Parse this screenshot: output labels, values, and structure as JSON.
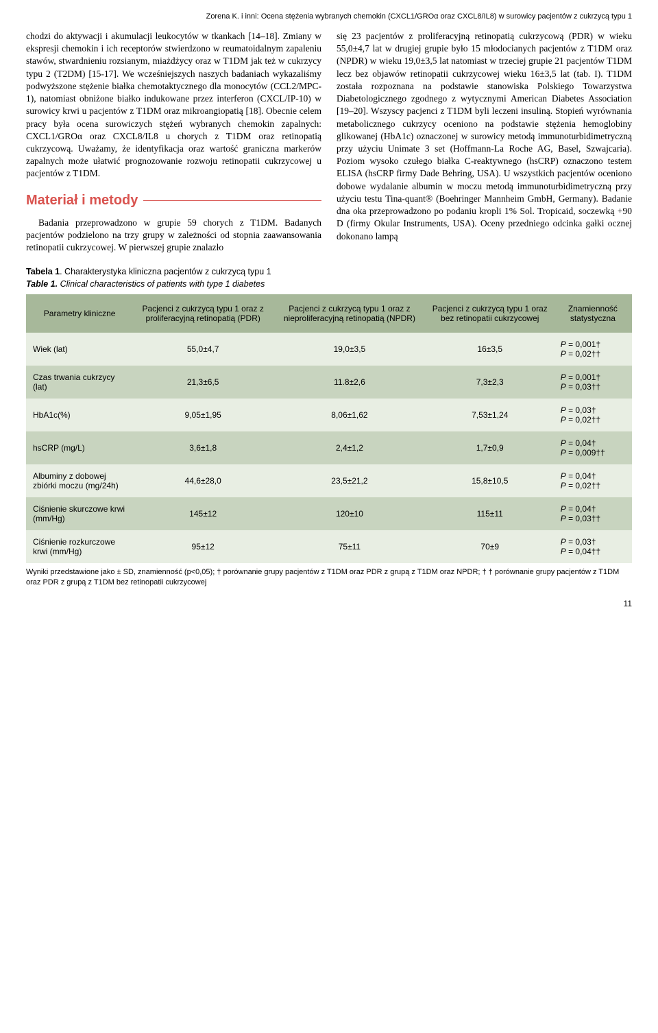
{
  "running_header": "Zorena K. i inni: Ocena stężenia wybranych chemokin (CXCL1/GROα oraz CXCL8/IL8) w surowicy pacjentów z cukrzycą typu 1",
  "left_paragraph": "chodzi do aktywacji i akumulacji leukocytów w tkankach [14–18]. Zmiany w ekspresji chemokin i ich receptorów stwierdzono w reumatoidalnym zapaleniu stawów, stwardnieniu rozsianym, miażdżycy oraz w T1DM jak też w cukrzycy typu 2 (T2DM) [15-17]. We wcześniejszych naszych badaniach wykazaliśmy podwyższone stężenie białka chemotaktycznego dla monocytów (CCL2/MPC-1), natomiast obniżone białko indukowane przez interferon (CXCL/IP-10) w surowicy krwi u pacjentów z T1DM oraz mikroangiopatią [18]. Obecnie celem pracy była ocena surowiczych stężeń wybranych chemokin zapalnych: CXCL1/GROα oraz CXCL8/IL8 u chorych z T1DM oraz retinopatią cukrzycową. Uważamy, że identyfikacja oraz wartość graniczna markerów zapalnych może ułatwić prognozowanie rozwoju retinopatii cukrzycowej u pacjentów z T1DM.",
  "section_title": "Materiał i metody",
  "methods_paragraph": "Badania przeprowadzono w grupie 59 chorych z T1DM. Badanych pacjentów podzielono na trzy grupy w zależności od stopnia zaawansowania retinopatii cukrzycowej. W pierwszej grupie znalazło",
  "right_paragraph": "się 23 pacjentów z proliferacyjną retinopatią cukrzycową (PDR) w wieku 55,0±4,7 lat w drugiej grupie było 15 młodocianych pacjentów z T1DM oraz (NPDR) w wieku 19,0±3,5 lat natomiast w trzeciej grupie 21 pacjentów T1DM lecz bez objawów retinopatii cukrzycowej wieku 16±3,5 lat (tab. I). T1DM została rozpoznana na podstawie stanowiska Polskiego Towarzystwa Diabetologicznego zgodnego z wytycznymi American Diabetes Association [19–20]. Wszyscy pacjenci z T1DM byli leczeni insuliną. Stopień wyrównania metabolicznego cukrzycy oceniono na podstawie stężenia hemoglobiny glikowanej (HbA1c) oznaczonej w surowicy metodą immunoturbidimetryczną przy użyciu Unimate 3 set (Hoffmann-La Roche AG, Basel, Szwajcaria). Poziom wysoko czułego białka C-reaktywnego (hsCRP) oznaczono testem ELISA (hsCRP firmy Dade Behring, USA). U wszystkich pacjentów oceniono dobowe wydalanie albumin w moczu metodą immunoturbidimetryczną przy użyciu testu Tina-quant® (Boehringer Mannheim GmbH, Germany). Badanie dna oka przeprowadzono po podaniu kropli 1% Sol. Tropicaid, soczewką +90 D (firmy Okular Instruments, USA). Oceny przedniego odcinka gałki ocznej dokonano lampą",
  "table_caption_pl_label": "Tabela 1",
  "table_caption_pl_text": ". Charakterystyka kliniczna pacjentów z cukrzycą typu 1",
  "table_caption_en_label": "Table 1.",
  "table_caption_en_text": " Clinical characteristics of patients with type 1 diabetes",
  "table": {
    "header_bg": "#a7b89a",
    "row_light_bg": "#e8eee3",
    "row_dark_bg": "#c8d4bf",
    "columns": [
      "Parametry kliniczne",
      "Pacjenci z cukrzycą typu 1 oraz z proliferacyjną retinopatią (PDR)",
      "Pacjenci z cukrzycą typu 1 oraz z nieproliferacyjną retinopatią (NPDR)",
      "Pacjenci z cukrzycą typu 1 oraz bez retinopatii cukrzycowej",
      "Znamienność statystyczna"
    ],
    "rows": [
      {
        "label": "Wiek (lat)",
        "c1": "55,0±4,7",
        "c2": "19,0±3,5",
        "c3": "16±3,5",
        "p1": "P = 0,001†",
        "p2": "P = 0,02††"
      },
      {
        "label": "Czas trwania cukrzycy (lat)",
        "c1": "21,3±6,5",
        "c2": "11.8±2,6",
        "c3": "7,3±2,3",
        "p1": "P = 0,001†",
        "p2": "P = 0,03††"
      },
      {
        "label": "HbA1c(%)",
        "c1": "9,05±1,95",
        "c2": "8,06±1,62",
        "c3": "7,53±1,24",
        "p1": "P = 0,03†",
        "p2": "P = 0,02††"
      },
      {
        "label": "hsCRP (mg/L)",
        "c1": "3,6±1,8",
        "c2": "2,4±1,2",
        "c3": "1,7±0,9",
        "p1": "P = 0,04†",
        "p2": "P = 0,009††"
      },
      {
        "label": "Albuminy z dobowej zbiórki moczu (mg/24h)",
        "c1": "44,6±28,0",
        "c2": "23,5±21,2",
        "c3": "15,8±10,5",
        "p1": "P = 0,04†",
        "p2": "P = 0,02††"
      },
      {
        "label": "Ciśnienie skurczowe krwi (mm/Hg)",
        "c1": "145±12",
        "c2": "120±10",
        "c3": "115±11",
        "p1": "P = 0,04†",
        "p2": "P = 0,03††"
      },
      {
        "label": "Ciśnienie rozkurczowe krwi (mm/Hg)",
        "c1": "95±12",
        "c2": "75±11",
        "c3": "70±9",
        "p1": "P = 0,03†",
        "p2": "P = 0,04††"
      }
    ]
  },
  "footnote": "Wyniki przedstawione jako ± SD, znamienność (p<0,05); † porównanie grupy pacjentów z T1DM oraz PDR z grupą z T1DM oraz NPDR; † † porównanie grupy pacjentów z T1DM oraz PDR z grupą z T1DM bez retinopatii cukrzycowej",
  "page_number": "11"
}
